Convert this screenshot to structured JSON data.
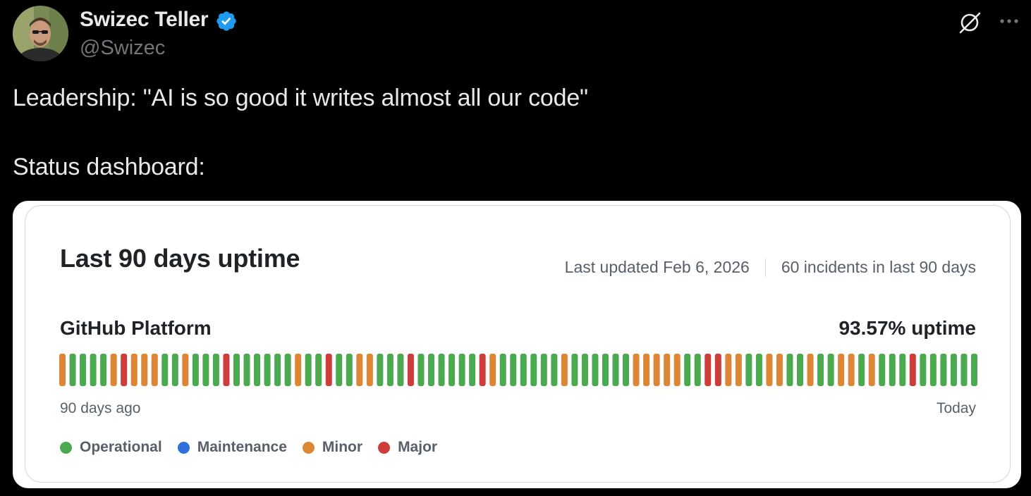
{
  "tweet": {
    "author_name": "Swizec Teller",
    "handle": "@Swizec",
    "verified": true,
    "text_lines": [
      "Leadership: \"AI is so good it writes almost all our code\"",
      "Status dashboard:"
    ]
  },
  "icons": {
    "verified": "verified-badge-icon",
    "grok": "grok-icon",
    "more": "more-options-icon"
  },
  "status_card": {
    "title": "Last 90 days uptime",
    "last_updated": "Last updated Feb 6, 2026",
    "incidents": "60 incidents in last 90 days",
    "component": "GitHub Platform",
    "uptime": "93.57% uptime",
    "range_start": "90 days ago",
    "range_end": "Today",
    "legend": [
      {
        "key": "O",
        "label": "Operational",
        "color": "#4ba94f"
      },
      {
        "key": "M",
        "label": "Maintenance",
        "color": "#2f6fde"
      },
      {
        "key": "N",
        "label": "Minor",
        "color": "#dc8636"
      },
      {
        "key": "J",
        "label": "Major",
        "color": "#cf3c3c"
      }
    ],
    "daily_status": [
      "N",
      "O",
      "O",
      "O",
      "O",
      "N",
      "J",
      "N",
      "N",
      "N",
      "O",
      "O",
      "N",
      "O",
      "O",
      "O",
      "J",
      "O",
      "O",
      "O",
      "O",
      "O",
      "O",
      "N",
      "O",
      "O",
      "J",
      "O",
      "O",
      "N",
      "N",
      "O",
      "O",
      "O",
      "J",
      "O",
      "O",
      "O",
      "O",
      "O",
      "O",
      "J",
      "N",
      "O",
      "O",
      "O",
      "O",
      "O",
      "O",
      "N",
      "O",
      "O",
      "O",
      "O",
      "O",
      "O",
      "N",
      "N",
      "N",
      "N",
      "N",
      "O",
      "O",
      "J",
      "J",
      "N",
      "N",
      "O",
      "O",
      "N",
      "N",
      "O",
      "O",
      "N",
      "O",
      "O",
      "N",
      "N",
      "O",
      "N",
      "O",
      "O",
      "O",
      "J",
      "O",
      "O",
      "O",
      "O",
      "O",
      "O"
    ]
  }
}
